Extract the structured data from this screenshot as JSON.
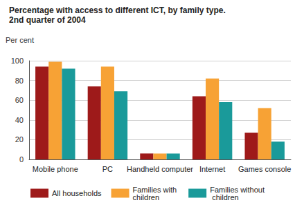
{
  "chart_data": {
    "type": "bar",
    "title": "Percentage with access to different ICT, by family type.",
    "subtitle": "2nd quarter of 2004",
    "y_label": "Per cent",
    "categories": [
      "Mobile phone",
      "PC",
      "Handheld computer",
      "Internet",
      "Games console"
    ],
    "series": [
      {
        "name": "All households",
        "color": "#9e1a1a",
        "values": [
          94,
          74,
          6,
          64,
          27
        ]
      },
      {
        "name": "Families with children",
        "color": "#f7a235",
        "values": [
          99,
          94,
          6,
          82,
          52
        ]
      },
      {
        "name": "Families without children",
        "color": "#1a9a9a",
        "values": [
          92,
          69,
          6,
          58,
          18
        ]
      }
    ],
    "ylim": [
      0,
      100
    ],
    "yticks": [
      0,
      20,
      40,
      60,
      80,
      100
    ],
    "grid": true,
    "legend": "bottom"
  }
}
